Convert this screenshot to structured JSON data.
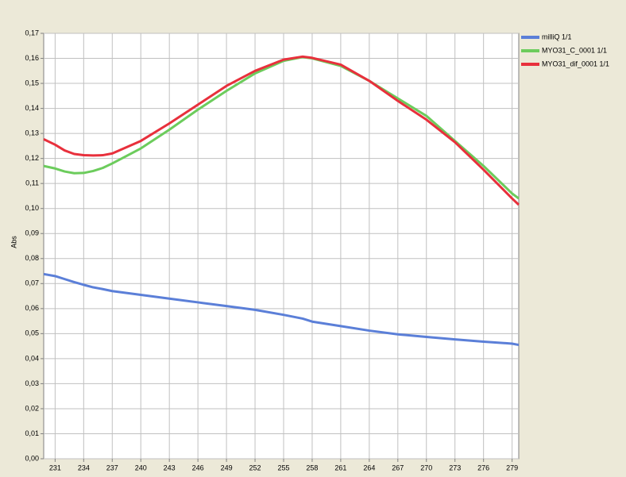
{
  "chart_data": {
    "type": "line",
    "y_label": "Abs",
    "x": [
      229.8,
      231,
      232,
      233,
      234,
      235,
      236,
      237,
      240,
      243,
      246,
      249,
      252,
      255,
      257,
      258,
      261,
      264,
      267,
      270,
      273,
      276,
      279,
      279.7
    ],
    "series": [
      {
        "name": "milliQ 1/1",
        "color": "#5b7fd8",
        "values": [
          0.0738,
          0.073,
          0.0718,
          0.0706,
          0.0695,
          0.0685,
          0.0678,
          0.067,
          0.0655,
          0.064,
          0.0625,
          0.061,
          0.0595,
          0.0575,
          0.056,
          0.0548,
          0.053,
          0.0512,
          0.0497,
          0.0487,
          0.0477,
          0.0468,
          0.046,
          0.0455
        ]
      },
      {
        "name": "MYO31_C_0001 1/1",
        "color": "#6ccc5c",
        "values": [
          0.117,
          0.116,
          0.1148,
          0.1141,
          0.1142,
          0.115,
          0.1162,
          0.118,
          0.124,
          0.1315,
          0.1395,
          0.147,
          0.154,
          0.159,
          0.1605,
          0.16,
          0.157,
          0.151,
          0.144,
          0.137,
          0.127,
          0.117,
          0.106,
          0.104
        ]
      },
      {
        "name": "MYO31_dif_0001 1/1",
        "color": "#e8303c",
        "values": [
          0.1277,
          0.1255,
          0.1232,
          0.1218,
          0.1213,
          0.1212,
          0.1213,
          0.122,
          0.127,
          0.134,
          0.1415,
          0.149,
          0.155,
          0.1595,
          0.1607,
          0.1602,
          0.1575,
          0.151,
          0.143,
          0.1355,
          0.1265,
          0.1155,
          0.104,
          0.1015
        ]
      }
    ],
    "xlim": [
      229.8,
      279.7
    ],
    "xticks": [
      231,
      234,
      237,
      240,
      243,
      246,
      249,
      252,
      255,
      258,
      261,
      264,
      267,
      270,
      273,
      276,
      279
    ],
    "ylim": [
      0,
      0.17
    ],
    "yticks": [
      {
        "value": 0,
        "label": "0,00"
      },
      {
        "value": 0.01,
        "label": "0,01"
      },
      {
        "value": 0.02,
        "label": "0,02"
      },
      {
        "value": 0.03,
        "label": "0,03"
      },
      {
        "value": 0.04,
        "label": "0,04"
      },
      {
        "value": 0.05,
        "label": "0,05"
      },
      {
        "value": 0.06,
        "label": "0,06"
      },
      {
        "value": 0.07,
        "label": "0,07"
      },
      {
        "value": 0.08,
        "label": "0,08"
      },
      {
        "value": 0.09,
        "label": "0,09"
      },
      {
        "value": 0.1,
        "label": "0,10"
      },
      {
        "value": 0.11,
        "label": "0,11"
      },
      {
        "value": 0.12,
        "label": "0,12"
      },
      {
        "value": 0.13,
        "label": "0,13"
      },
      {
        "value": 0.14,
        "label": "0,14"
      },
      {
        "value": 0.15,
        "label": "0,15"
      },
      {
        "value": 0.16,
        "label": "0,16"
      },
      {
        "value": 0.17,
        "label": "0,17"
      }
    ],
    "grid": true,
    "legend": "right"
  }
}
